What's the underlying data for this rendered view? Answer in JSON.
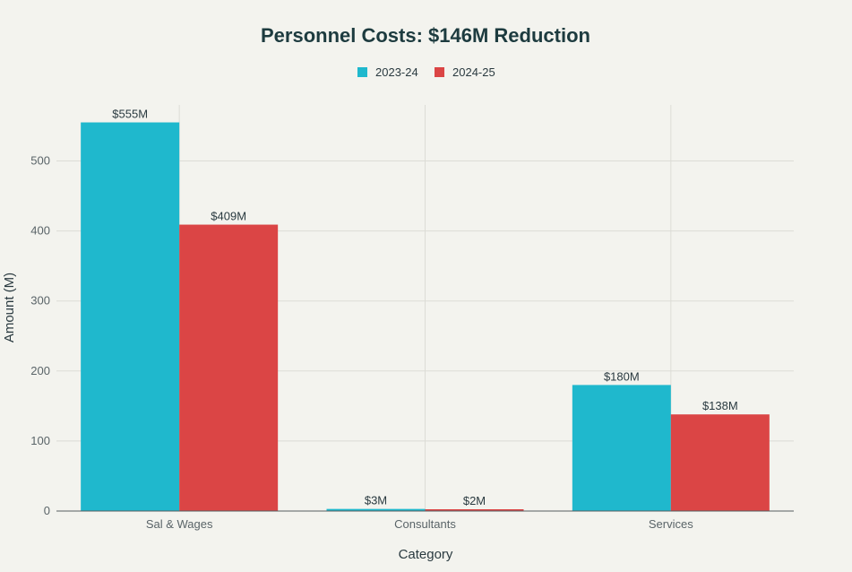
{
  "chart_data": {
    "type": "bar",
    "title": "Personnel Costs: $146M Reduction",
    "xlabel": "Category",
    "ylabel": "Amount (M)",
    "categories": [
      "Sal & Wages",
      "Consultants",
      "Services"
    ],
    "series": [
      {
        "name": "2023-24",
        "color": "#1fb8cd",
        "values": [
          555,
          3,
          180
        ],
        "labels": [
          "$555M",
          "$3M",
          "$180M"
        ]
      },
      {
        "name": "2024-25",
        "color": "#db4545",
        "values": [
          409,
          2,
          138
        ],
        "labels": [
          "$409M",
          "$2M",
          "$138M"
        ]
      }
    ],
    "ylim": [
      0,
      580
    ],
    "yticks": [
      0,
      100,
      200,
      300,
      400,
      500
    ],
    "grid": true,
    "legend_position": "top-center"
  }
}
